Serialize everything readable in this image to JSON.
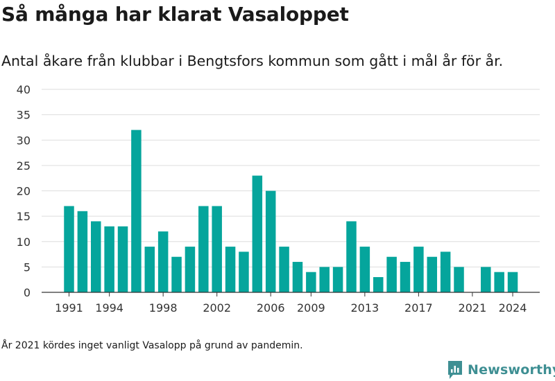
{
  "header": {
    "title": "Så många har klarat Vasaloppet",
    "subtitle": "Antal åkare från klubbar i Bengtsfors kommun som gått i mål år för år."
  },
  "footnote": "År 2021 kördes inget vanligt Vasalopp på grund av pandemin.",
  "brand": {
    "name": "Newsworthy",
    "color": "#3e8f93",
    "icon": "newsworthy-logo-icon"
  },
  "colors": {
    "bar": "#05a59c",
    "grid": "#dddddd",
    "axis": "#333333",
    "text": "#333333"
  },
  "chart_data": {
    "type": "bar",
    "title": "Så många har klarat Vasaloppet",
    "subtitle": "Antal åkare från klubbar i Bengtsfors kommun som gått i mål år för år.",
    "xlabel": "",
    "ylabel": "",
    "ylim": [
      0,
      40
    ],
    "yticks": [
      0,
      5,
      10,
      15,
      20,
      25,
      30,
      35,
      40
    ],
    "xticks": [
      1991,
      1994,
      1998,
      2002,
      2006,
      2009,
      2013,
      2017,
      2021,
      2024
    ],
    "grid": true,
    "legend": "none",
    "categories": [
      1991,
      1992,
      1993,
      1994,
      1995,
      1996,
      1997,
      1998,
      1999,
      2000,
      2001,
      2002,
      2003,
      2004,
      2005,
      2006,
      2007,
      2008,
      2009,
      2010,
      2011,
      2012,
      2013,
      2014,
      2015,
      2016,
      2017,
      2018,
      2019,
      2020,
      2021,
      2022,
      2023,
      2024
    ],
    "values": [
      17,
      16,
      14,
      13,
      13,
      32,
      9,
      12,
      7,
      9,
      17,
      17,
      9,
      8,
      23,
      20,
      9,
      6,
      4,
      5,
      5,
      14,
      9,
      3,
      7,
      6,
      9,
      7,
      8,
      5,
      null,
      5,
      4,
      4
    ]
  }
}
